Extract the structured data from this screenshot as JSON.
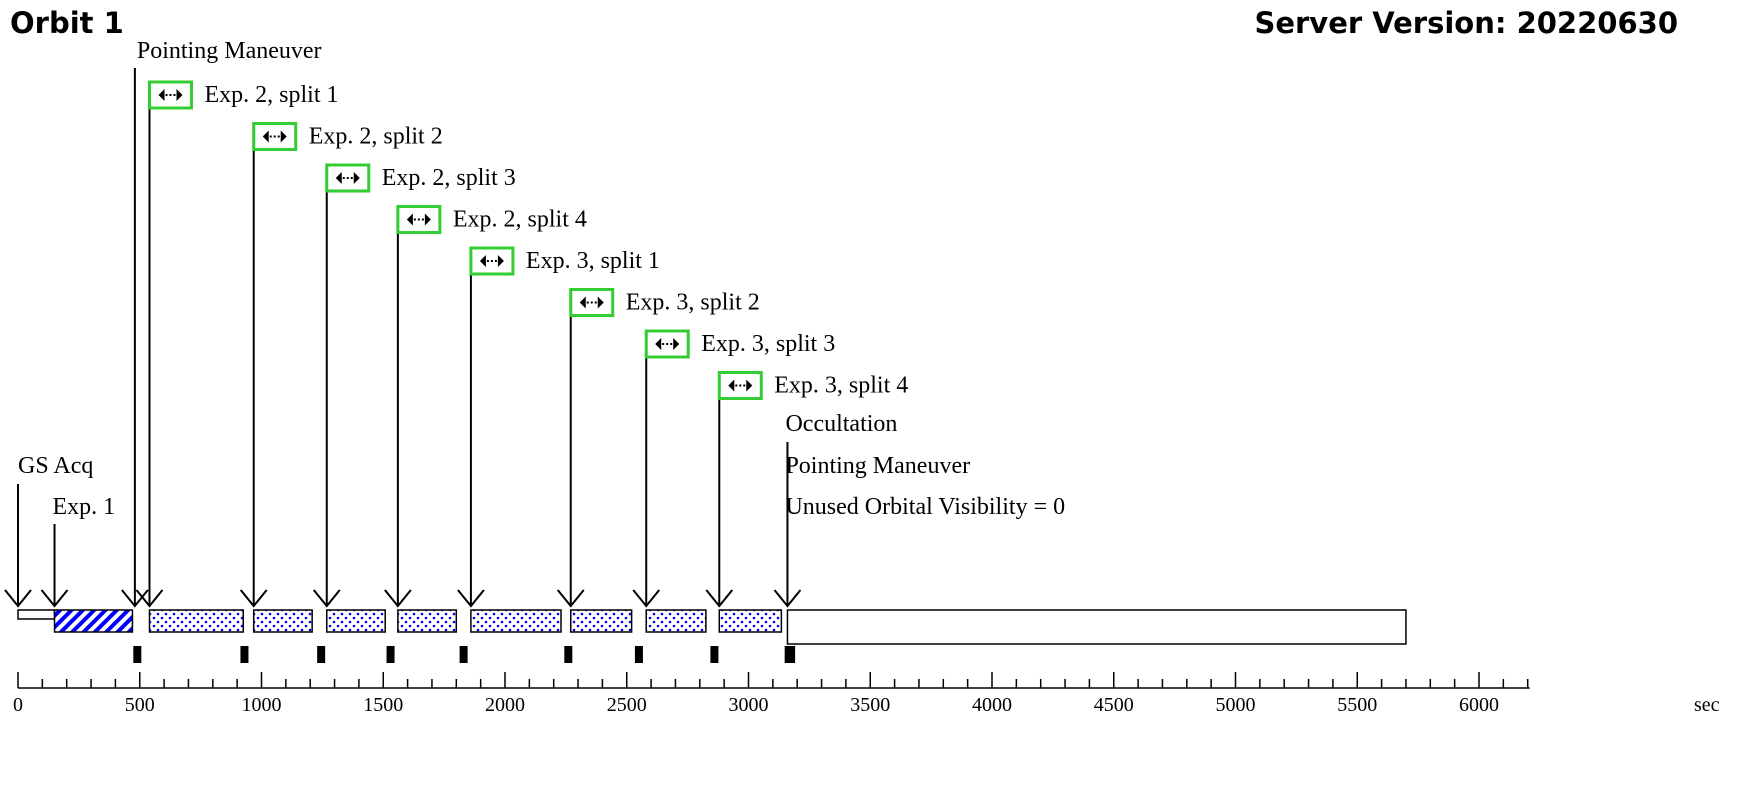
{
  "header": {
    "orbit_title": "Orbit 1",
    "server_version": "Server Version: 20220630"
  },
  "events": {
    "pointing_maneuver_1": "Pointing Maneuver",
    "gs_acq": "GS Acq",
    "exp1": "Exp. 1",
    "occultation": "Occultation",
    "pointing_maneuver_2": "Pointing Maneuver",
    "unused_visibility": "Unused Orbital Visibility = 0"
  },
  "exposures": [
    {
      "label": "Exp. 2, split 1",
      "start": 540,
      "end": 925,
      "readout": 930
    },
    {
      "label": "Exp. 2, split 2",
      "start": 968,
      "end": 1208,
      "readout": 1245
    },
    {
      "label": "Exp. 2, split 3",
      "start": 1268,
      "end": 1508,
      "readout": 1530
    },
    {
      "label": "Exp. 2, split 4",
      "start": 1560,
      "end": 1800,
      "readout": 1830
    },
    {
      "label": "Exp. 3, split 1",
      "start": 1860,
      "end": 2230,
      "readout": 2260
    },
    {
      "label": "Exp. 3, split 2",
      "start": 2270,
      "end": 2520,
      "readout": 2550
    },
    {
      "label": "Exp. 3, split 3",
      "start": 2580,
      "end": 2825,
      "readout": 2860
    },
    {
      "label": "Exp. 3, split 4",
      "start": 2880,
      "end": 3135,
      "readout": 3165
    }
  ],
  "timeline": {
    "gs_acq_start": 0,
    "gs_acq_end": 150,
    "exp1_start": 150,
    "exp1_end": 470,
    "exp1_readout": 490,
    "pointing_maneuver_time": 480,
    "occultation_time": 3160,
    "occultation_end": 5700
  },
  "axis": {
    "min": 0,
    "max": 6200,
    "major_step": 500,
    "minor_step": 100,
    "major_ticks": [
      "0",
      "500",
      "1000",
      "1500",
      "2000",
      "2500",
      "3000",
      "3500",
      "4000",
      "4500",
      "5000",
      "5500",
      "6000"
    ],
    "unit": "sec"
  },
  "colors": {
    "expose_fill": "#0000ff",
    "icon_border": "#33cc33",
    "line": "#000000"
  }
}
